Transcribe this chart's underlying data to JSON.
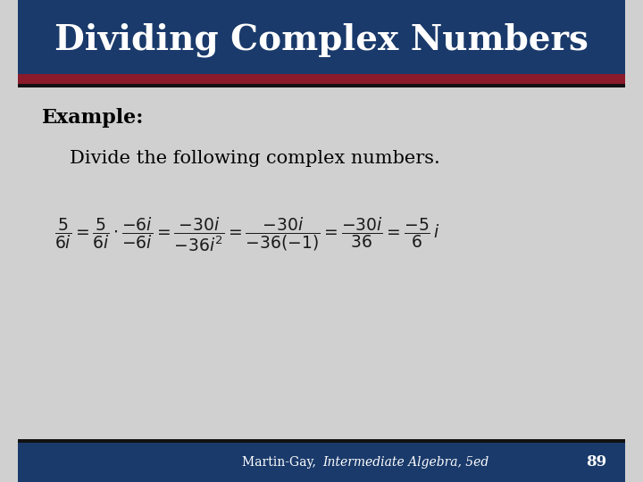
{
  "title": "Dividing Complex Numbers",
  "title_bg": "#1a3a6b",
  "title_color": "#ffffff",
  "title_fontsize": 28,
  "accent_color1": "#8b1a2a",
  "body_bg": "#d0d0d0",
  "footer_bg": "#1a3a6b",
  "footer_text": "Martin-Gay, ",
  "footer_italic": "Intermediate Algebra, 5ed",
  "footer_page": "89",
  "footer_color": "#ffffff",
  "example_label": "Example:",
  "example_text": "Divide the following complex numbers.",
  "math_expr": "$\\dfrac{5}{6i} = \\dfrac{5}{6i} \\cdot \\dfrac{-6i}{-6i} = \\dfrac{-30i}{-36i^2} = \\dfrac{-30i}{-36(-1)} = \\dfrac{-30i}{36} = \\dfrac{-5}{6}\\,i$"
}
